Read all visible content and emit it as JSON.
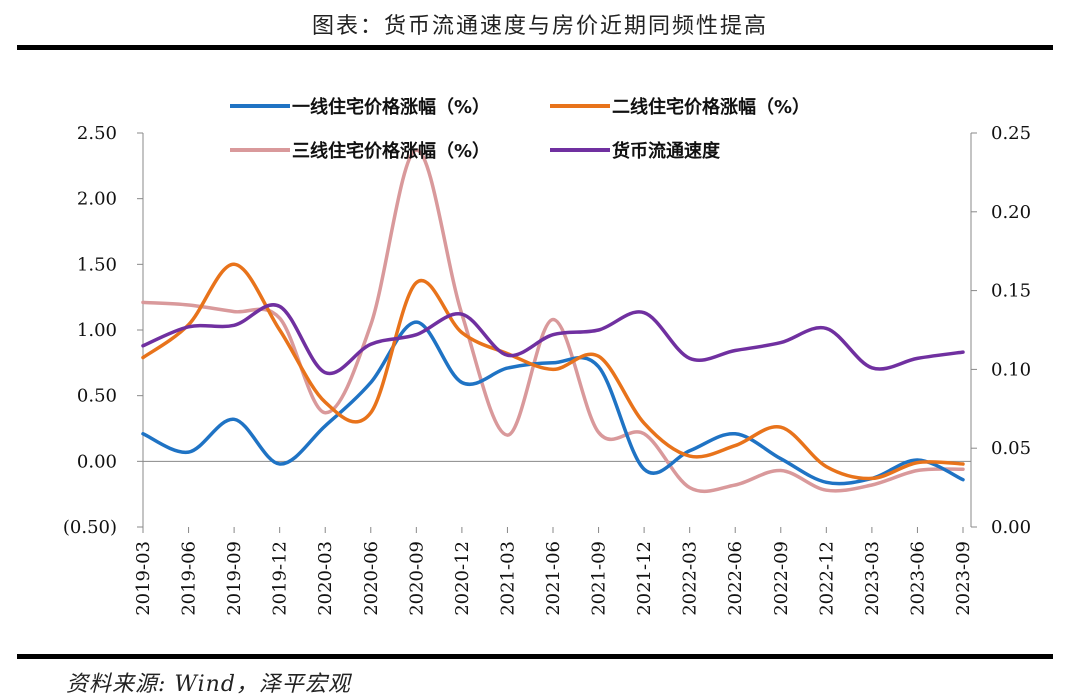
{
  "header": {
    "title": "图表：货币流通速度与房价近期同频性提高"
  },
  "footer": {
    "source": "资料来源:   Wind，泽平宏观"
  },
  "chart_data": {
    "type": "line",
    "title": "图表：货币流通速度与房价近期同频性提高",
    "categories": [
      "2019-03",
      "2019-06",
      "2019-09",
      "2019-12",
      "2020-03",
      "2020-06",
      "2020-09",
      "2020-12",
      "2021-03",
      "2021-06",
      "2021-09",
      "2021-12",
      "2022-03",
      "2022-06",
      "2022-09",
      "2022-12",
      "2023-03",
      "2023-06",
      "2023-09"
    ],
    "left_axis": {
      "ylim": [
        -0.5,
        2.5
      ],
      "ticks": [
        "(0.50)",
        "0.00",
        "0.50",
        "1.00",
        "1.50",
        "2.00",
        "2.50"
      ],
      "tick_values": [
        -0.5,
        0,
        0.5,
        1,
        1.5,
        2,
        2.5
      ],
      "negative_color": "#e00000"
    },
    "right_axis": {
      "ylim": [
        0,
        0.25
      ],
      "ticks": [
        "0.00",
        "0.05",
        "0.10",
        "0.15",
        "0.20",
        "0.25"
      ],
      "tick_values": [
        0,
        0.05,
        0.1,
        0.15,
        0.2,
        0.25
      ]
    },
    "series": [
      {
        "name": "一线住宅价格涨幅（%）",
        "color": "#1f73c4",
        "axis": "left",
        "values": [
          0.21,
          0.07,
          0.32,
          -0.02,
          0.27,
          0.6,
          1.06,
          0.6,
          0.71,
          0.75,
          0.72,
          -0.06,
          0.08,
          0.21,
          0.02,
          -0.16,
          -0.13,
          0.01,
          -0.14
        ]
      },
      {
        "name": "二线住宅价格涨幅（%）",
        "color": "#e8731b",
        "axis": "left",
        "values": [
          0.79,
          1.04,
          1.5,
          1.0,
          0.45,
          0.37,
          1.36,
          0.98,
          0.82,
          0.7,
          0.8,
          0.29,
          0.04,
          0.12,
          0.26,
          -0.04,
          -0.13,
          -0.01,
          -0.02
        ]
      },
      {
        "name": "三线住宅价格涨幅（%）",
        "color": "#d9999b",
        "axis": "left",
        "values": [
          1.21,
          1.19,
          1.14,
          1.09,
          0.37,
          1.04,
          2.37,
          1.12,
          0.2,
          1.08,
          0.22,
          0.21,
          -0.2,
          -0.18,
          -0.07,
          -0.22,
          -0.18,
          -0.07,
          -0.06
        ]
      },
      {
        "name": "货币流通速度",
        "color": "#7030a0",
        "axis": "right",
        "values": [
          0.115,
          0.127,
          0.128,
          0.14,
          0.098,
          0.116,
          0.122,
          0.135,
          0.109,
          0.122,
          0.125,
          0.136,
          0.107,
          0.112,
          0.117,
          0.126,
          0.101,
          0.107,
          0.111
        ]
      }
    ],
    "legend_position": "top-center"
  }
}
